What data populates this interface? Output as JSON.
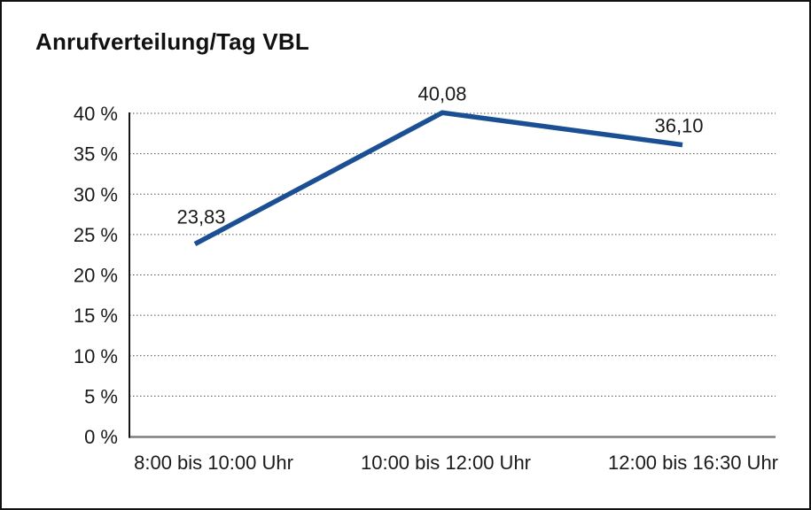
{
  "chart_data": {
    "type": "line",
    "title": "Anrufverteilung/Tag VBL",
    "categories": [
      "8:00 bis 10:00 Uhr",
      "10:00 bis 12:00 Uhr",
      "12:00 bis 16:30 Uhr"
    ],
    "values": [
      23.83,
      40.08,
      36.1
    ],
    "data_labels": [
      "23,83",
      "40,08",
      "36,10"
    ],
    "xlabel": "",
    "ylabel": "",
    "ylim": [
      0,
      40
    ],
    "yticks": [
      0,
      5,
      10,
      15,
      20,
      25,
      30,
      35,
      40
    ],
    "ytick_suffix": " %",
    "grid": "horizontal-dotted",
    "legend": "none",
    "colors": {
      "line": "#1b4f94",
      "text": "#1a1a1a",
      "gridline": "#4d4d4d",
      "y_axis": "#161616",
      "x_axis": "#7e7e7e",
      "frame_border": "#111111",
      "background": "#ffffff"
    }
  }
}
